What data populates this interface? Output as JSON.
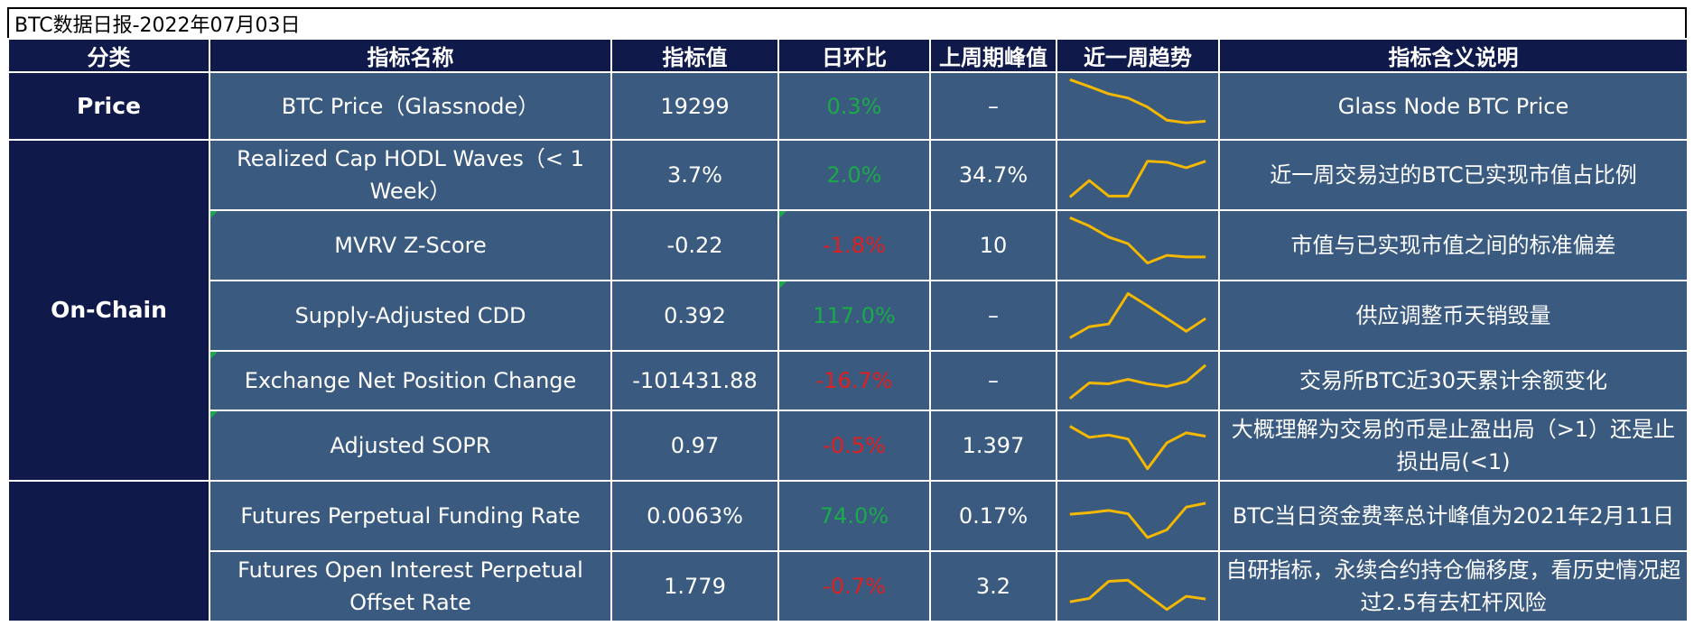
{
  "title": "BTC数据日报-2022年07月03日",
  "headers": [
    "分类",
    "指标名称",
    "指标值",
    "日环比",
    "上周期峰值",
    "近一周趋势",
    "指标含义说明"
  ],
  "categories": {
    "price": "Price",
    "onchain": "On-Chain",
    "futures": ""
  },
  "rows": [
    {
      "name": "BTC Price（Glassnode）",
      "value": "19299",
      "dod": "0.3%",
      "prev_peak": "–",
      "desc": "Glass Node BTC Price",
      "trend": [
        10,
        8.7,
        7.3,
        6.5,
        4.8,
        2.3,
        1.8,
        2.1
      ]
    },
    {
      "name": "Realized Cap HODL Waves（< 1 Week）",
      "value": "3.7%",
      "dod": "2.0%",
      "prev_peak": "34.7%",
      "desc": "近一周交易过的BTC已实现市值占比例",
      "trend": [
        1,
        4,
        1.2,
        1.2,
        7.5,
        7.3,
        6.3,
        7.5
      ]
    },
    {
      "name": "MVRV Z-Score",
      "value": "-0.22",
      "dod": "-1.8%",
      "prev_peak": "10",
      "desc": "市值与已实现市值之间的标准偏差",
      "trend": [
        10,
        8.5,
        6.5,
        5.3,
        1.8,
        3.2,
        2.9,
        2.9
      ]
    },
    {
      "name": "Supply-Adjusted CDD",
      "value": "0.392",
      "dod": "117.0%",
      "prev_peak": "–",
      "desc": "供应调整币天销毁量",
      "trend": [
        1,
        3,
        3.5,
        9,
        6.8,
        4.5,
        2.2,
        4.5
      ]
    },
    {
      "name": "Exchange Net Position Change",
      "value": "-101431.88",
      "dod": "-16.7%",
      "prev_peak": "–",
      "desc": "交易所BTC近30天累计余额变化",
      "trend": [
        1,
        4.5,
        4.3,
        5.3,
        4.3,
        3.7,
        4.8,
        8.5
      ]
    },
    {
      "name": "Adjusted SOPR",
      "value": "0.97",
      "dod": "-0.5%",
      "prev_peak": "1.397",
      "desc": "大概理解为交易的币是止盈出局（>1）还是止损出局(<1)",
      "trend": [
        8.5,
        6.5,
        6.9,
        6.2,
        0.8,
        5.5,
        7.3,
        6.7
      ]
    },
    {
      "name": "Futures Perpetual Funding Rate",
      "value": "0.0063%",
      "dod": "74.0%",
      "prev_peak": "0.17%",
      "desc": "BTC当日资金费率总计峰值为2021年2月11日",
      "trend": [
        5.3,
        5.6,
        6,
        5.4,
        1.1,
        2.5,
        6.6,
        7.3
      ]
    },
    {
      "name": "Futures Open Interest Perpetual Offset Rate",
      "value": "1.779",
      "dod": "-0.7%",
      "prev_peak": "3.2",
      "desc": "自研指标，永续合约持仓偏移度，看历史情况超过2.5有去杠杆风险",
      "trend": [
        2.2,
        2.8,
        5.9,
        6.1,
        3.4,
        0.8,
        3.2,
        2.7
      ]
    }
  ],
  "colors": {
    "header_bg": "#0f1a4a",
    "cell_bg": "#3a5a80",
    "positive": "#1aaa4a",
    "negative": "#e02020",
    "spark": "#f5b800"
  }
}
